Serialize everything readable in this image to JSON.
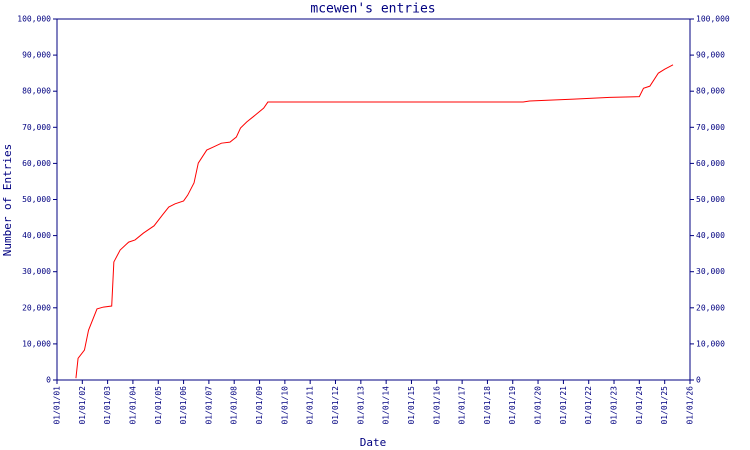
{
  "chart_data": {
    "type": "line",
    "title": "mcewen's entries",
    "x_label": "Date",
    "y_label": "Number of Entries",
    "color": "#ff0000",
    "x": [
      "2001-10-01",
      "2001-11-01",
      "2002-02-01",
      "2002-04-01",
      "2002-08-01",
      "2002-11-01",
      "2003-03-01",
      "2003-04-01",
      "2003-07-01",
      "2003-11-01",
      "2004-02-01",
      "2004-06-01",
      "2004-11-01",
      "2005-03-01",
      "2005-06-01",
      "2005-09-01",
      "2006-01-01",
      "2006-03-01",
      "2006-06-01",
      "2006-08-01",
      "2006-12-01",
      "2007-03-01",
      "2007-07-01",
      "2007-11-01",
      "2008-02-01",
      "2008-04-01",
      "2008-07-01",
      "2008-11-01",
      "2009-03-01",
      "2009-05-01",
      "2019-06-01",
      "2019-09-01",
      "2021-06-01",
      "2022-11-01",
      "2024-01-01",
      "2024-03-01",
      "2024-06-01",
      "2024-10-01",
      "2025-01-01",
      "2025-05-01"
    ],
    "values": [
      500,
      6000,
      8300,
      13800,
      19700,
      20200,
      20500,
      32700,
      36000,
      38200,
      38800,
      40700,
      42700,
      45700,
      47900,
      48800,
      49600,
      51200,
      54600,
      60100,
      63700,
      64500,
      65600,
      65900,
      67300,
      69800,
      71500,
      73400,
      75300,
      77000,
      77000,
      77300,
      77800,
      78300,
      78500,
      80800,
      81400,
      85000,
      86100,
      87300
    ],
    "xlim": [
      "2001-01-01",
      "2026-01-01"
    ],
    "xticks": [
      {
        "value": "2001-01-01",
        "label": "01/01/01"
      },
      {
        "value": "2002-01-01",
        "label": "01/01/02"
      },
      {
        "value": "2003-01-01",
        "label": "01/01/03"
      },
      {
        "value": "2004-01-01",
        "label": "01/01/04"
      },
      {
        "value": "2005-01-01",
        "label": "01/01/05"
      },
      {
        "value": "2006-01-01",
        "label": "01/01/06"
      },
      {
        "value": "2007-01-01",
        "label": "01/01/07"
      },
      {
        "value": "2008-01-01",
        "label": "01/01/08"
      },
      {
        "value": "2009-01-01",
        "label": "01/01/09"
      },
      {
        "value": "2010-01-01",
        "label": "01/01/10"
      },
      {
        "value": "2011-01-01",
        "label": "01/01/11"
      },
      {
        "value": "2012-01-01",
        "label": "01/01/12"
      },
      {
        "value": "2013-01-01",
        "label": "01/01/13"
      },
      {
        "value": "2014-01-01",
        "label": "01/01/14"
      },
      {
        "value": "2015-01-01",
        "label": "01/01/15"
      },
      {
        "value": "2016-01-01",
        "label": "01/01/16"
      },
      {
        "value": "2017-01-01",
        "label": "01/01/17"
      },
      {
        "value": "2018-01-01",
        "label": "01/01/18"
      },
      {
        "value": "2019-01-01",
        "label": "01/01/19"
      },
      {
        "value": "2020-01-01",
        "label": "01/01/20"
      },
      {
        "value": "2021-01-01",
        "label": "01/01/21"
      },
      {
        "value": "2022-01-01",
        "label": "01/01/22"
      },
      {
        "value": "2023-01-01",
        "label": "01/01/23"
      },
      {
        "value": "2024-01-01",
        "label": "01/01/24"
      },
      {
        "value": "2025-01-01",
        "label": "01/01/25"
      },
      {
        "value": "2026-01-01",
        "label": "01/01/26"
      }
    ],
    "ylim": [
      0,
      100000
    ],
    "yticks": [
      0,
      {
        "value": 10000,
        "label": "10,000"
      },
      {
        "value": 20000,
        "label": "20,000"
      },
      {
        "value": 30000,
        "label": "30,000"
      },
      {
        "value": 40000,
        "label": "40,000"
      },
      {
        "value": 50000,
        "label": "50,000"
      },
      {
        "value": 60000,
        "label": "60,000"
      },
      {
        "value": 70000,
        "label": "70,000"
      },
      {
        "value": 80000,
        "label": "80,000"
      },
      {
        "value": 90000,
        "label": "90,000"
      },
      {
        "value": 100000,
        "label": "100,000"
      }
    ],
    "y2lim": [
      0,
      100000
    ],
    "y2ticks": [
      0,
      {
        "value": 10000,
        "label": "10,000"
      },
      {
        "value": 20000,
        "label": "20,000"
      },
      {
        "value": 30000,
        "label": "30,000"
      },
      {
        "value": 40000,
        "label": "40,000"
      },
      {
        "value": 50000,
        "label": "50,000"
      },
      {
        "value": 60000,
        "label": "60,000"
      },
      {
        "value": 70000,
        "label": "70,000"
      },
      {
        "value": 80000,
        "label": "80,000"
      },
      {
        "value": 90000,
        "label": "90,000"
      },
      {
        "value": 100000,
        "label": "100,000"
      }
    ]
  }
}
